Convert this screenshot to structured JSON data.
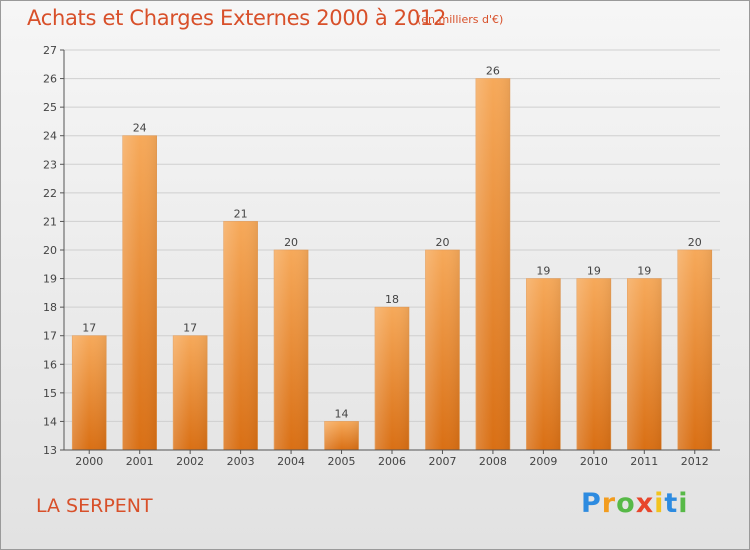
{
  "header": {
    "title": "Achats et Charges Externes 2000 à 2012",
    "subtitle": "(en milliers d'€)"
  },
  "footer": {
    "commune": "LA SERPENT",
    "logo_letters": [
      "P",
      "r",
      "o",
      "x",
      "i",
      "t",
      "i"
    ]
  },
  "colors": {
    "title": "#d8502a",
    "bar_light": "#f6a95a",
    "bar_dark": "#d96f14",
    "grid": "#cfcfcf"
  },
  "chart_data": {
    "type": "bar",
    "title": "Achats et Charges Externes 2000 à 2012",
    "xlabel": "",
    "ylabel": "",
    "categories": [
      "2000",
      "2001",
      "2002",
      "2003",
      "2004",
      "2005",
      "2006",
      "2007",
      "2008",
      "2009",
      "2010",
      "2011",
      "2012"
    ],
    "values": [
      17,
      24,
      17,
      21,
      20,
      14,
      18,
      20,
      26,
      19,
      19,
      19,
      20
    ],
    "ylim": [
      13,
      27
    ],
    "yticks": [
      13,
      14,
      15,
      16,
      17,
      18,
      19,
      20,
      21,
      22,
      23,
      24,
      25,
      26,
      27
    ],
    "grid": true,
    "show_data_labels": true
  }
}
